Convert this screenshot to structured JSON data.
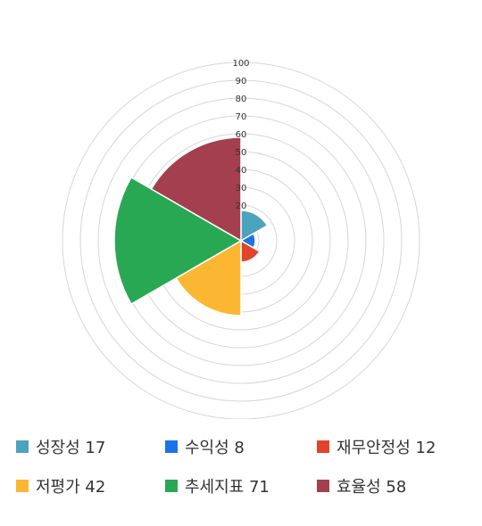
{
  "chart_data": {
    "type": "polar-area",
    "categories": [
      "성장성",
      "수익성",
      "재무안정성",
      "저평가",
      "추세지표",
      "효율성"
    ],
    "values": [
      17,
      8,
      12,
      42,
      71,
      58
    ],
    "colors": [
      "#4ba3bd",
      "#1a73e8",
      "#e0452b",
      "#fcb732",
      "#29a853",
      "#a33f4e"
    ],
    "rlim": [
      0,
      100
    ],
    "ticks": [
      "100",
      "90",
      "80",
      "70",
      "60",
      "50",
      "40",
      "30",
      "20"
    ],
    "grid": true,
    "legend_position": "bottom",
    "legend": [
      {
        "label": "성장성 17"
      },
      {
        "label": "수익성 8"
      },
      {
        "label": "재무안정성 12"
      },
      {
        "label": "저평가 42"
      },
      {
        "label": "추세지표 71"
      },
      {
        "label": "효율성 58"
      }
    ]
  }
}
